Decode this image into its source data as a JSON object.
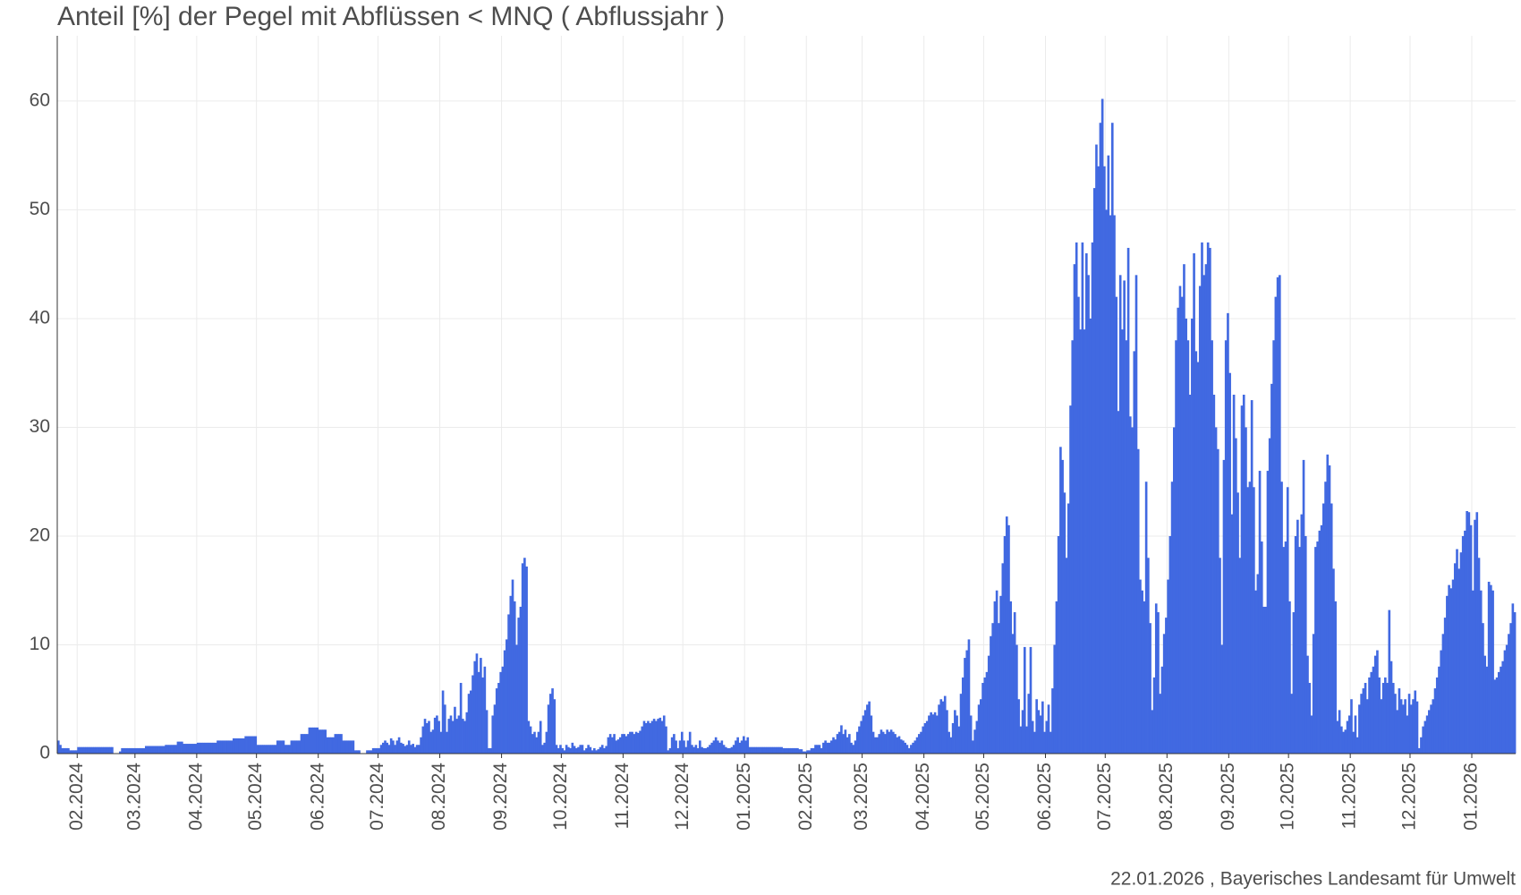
{
  "chart_data": {
    "type": "bar",
    "title": "Anteil [%] der Pegel mit Abflüssen < MNQ ( Abflussjahr )",
    "caption": "22.01.2026 , Bayerisches Landesamt für Umwelt",
    "color": "#4169e1",
    "grid": true,
    "ylim": [
      0,
      66
    ],
    "yticks": [
      0,
      10,
      20,
      30,
      40,
      50,
      60
    ],
    "xticks": [
      "02.2024",
      "03.2024",
      "04.2024",
      "05.2024",
      "06.2024",
      "07.2024",
      "08.2024",
      "09.2024",
      "10.2024",
      "11.2024",
      "12.2024",
      "01.2025",
      "02.2025",
      "03.2025",
      "04.2025",
      "05.2025",
      "06.2025",
      "07.2025",
      "08.2025",
      "09.2025",
      "10.2025",
      "11.2025",
      "12.2025",
      "01.2026"
    ],
    "values": [
      1.2,
      0.8,
      0.5,
      0.5,
      0.5,
      0.5,
      0.3,
      0.3,
      0.3,
      0.3,
      0.6,
      0.6,
      0.6,
      0.6,
      0.6,
      0.6,
      0.6,
      0.6,
      0.6,
      0.6,
      0.6,
      0.6,
      0.6,
      0.6,
      0.6,
      0.6,
      0.6,
      0.6,
      0,
      0,
      0,
      0.2,
      0.5,
      0.5,
      0.5,
      0.5,
      0.5,
      0.5,
      0.5,
      0.5,
      0.5,
      0.5,
      0.5,
      0.5,
      0.7,
      0.7,
      0.7,
      0.7,
      0.7,
      0.7,
      0.7,
      0.7,
      0.7,
      0.7,
      0.8,
      0.8,
      0.8,
      0.8,
      0.8,
      0.8,
      1.1,
      1.1,
      1.1,
      0.9,
      0.9,
      0.9,
      0.9,
      0.9,
      0.9,
      0.9,
      1.0,
      1.0,
      1.0,
      1.0,
      1.0,
      1.0,
      1.0,
      1.0,
      1.0,
      1.0,
      1.2,
      1.2,
      1.2,
      1.2,
      1.2,
      1.2,
      1.2,
      1.2,
      1.4,
      1.4,
      1.4,
      1.4,
      1.4,
      1.4,
      1.6,
      1.6,
      1.6,
      1.6,
      1.6,
      1.6,
      0.8,
      0.8,
      0.8,
      0.8,
      0.8,
      0.8,
      0.8,
      0.8,
      0.8,
      0.8,
      1.2,
      1.2,
      1.2,
      1.2,
      0.8,
      0.8,
      0.8,
      1.2,
      1.2,
      1.2,
      1.2,
      1.2,
      1.8,
      1.8,
      1.8,
      1.8,
      2.4,
      2.4,
      2.4,
      2.4,
      2.4,
      2.2,
      2.2,
      2.2,
      2.2,
      1.5,
      1.5,
      1.5,
      1.5,
      1.8,
      1.8,
      1.8,
      1.8,
      1.2,
      1.2,
      1.2,
      1.2,
      1.2,
      1.2,
      0.3,
      0.3,
      0.3,
      0,
      0,
      0,
      0.3,
      0.3,
      0.3,
      0.5,
      0.5,
      0.5,
      0.5,
      0.8,
      1.0,
      1.2,
      1.0,
      0.8,
      1.4,
      1.2,
      0.8,
      1.2,
      1.5,
      1.0,
      0.9,
      0.7,
      0.8,
      1.2,
      0.8,
      0.9,
      0.6,
      0.8,
      0.8,
      1.5,
      2.5,
      3.2,
      2.8,
      3.0,
      2.0,
      2.2,
      3.3,
      3.5,
      3.0,
      2.0,
      5.8,
      4.5,
      2.0,
      3.2,
      3.5,
      3.0,
      4.3,
      3.2,
      3.5,
      6.5,
      3.2,
      3.0,
      3.8,
      5.5,
      5.8,
      7.2,
      8.5,
      9.2,
      7.5,
      8.8,
      7.0,
      8.0,
      4.0,
      0.5,
      0.5,
      3.5,
      4.5,
      6.0,
      6.5,
      7.5,
      8.0,
      9.5,
      10.5,
      12.8,
      14.5,
      16.0,
      14.0,
      10.0,
      12.5,
      13.5,
      17.5,
      18.0,
      17.2,
      3.0,
      2.5,
      1.8,
      2.0,
      1.5,
      2.0,
      3.0,
      0.8,
      1.0,
      2.0,
      4.5,
      5.5,
      6.0,
      5.0,
      0.8,
      0.5,
      0.8,
      0.5,
      0.3,
      0.8,
      0.6,
      0.5,
      1.0,
      0.7,
      0.5,
      0.6,
      0.8,
      0.8,
      0.3,
      0.5,
      0.8,
      0.6,
      0.3,
      0.5,
      0.3,
      0.4,
      0.6,
      0.8,
      0.5,
      0.7,
      1.5,
      1.8,
      1.5,
      1.8,
      1.2,
      1.3,
      1.5,
      1.8,
      1.8,
      1.6,
      1.8,
      2.0,
      2.0,
      1.8,
      2.0,
      1.9,
      2.1,
      2.5,
      3.0,
      2.8,
      3.0,
      2.8,
      3.0,
      3.2,
      3.0,
      3.2,
      3.3,
      3.0,
      3.5,
      2.5,
      0.3,
      0.5,
      1.5,
      1.8,
      1.2,
      0.5,
      1.2,
      2.0,
      1.2,
      0.6,
      1.2,
      2.0,
      0.8,
      0.6,
      0.8,
      0.5,
      1.2,
      0.6,
      0.5,
      0.5,
      0.6,
      0.8,
      1.0,
      1.2,
      1.5,
      1.2,
      1.0,
      1.2,
      0.8,
      0.6,
      0.5,
      0.5,
      0.6,
      0.8,
      1.2,
      1.5,
      1.0,
      1.2,
      1.6,
      1.2,
      1.5,
      0.6,
      0.6,
      0.6,
      0.6,
      0.6,
      0.6,
      0.6,
      0.6,
      0.6,
      0.6,
      0.6,
      0.6,
      0.6,
      0.6,
      0.6,
      0.6,
      0.6,
      0.5,
      0.5,
      0.5,
      0.5,
      0.5,
      0.5,
      0.5,
      0.5,
      0.4,
      0.4,
      0.2,
      0.2,
      0.3,
      0.3,
      0.5,
      0.5,
      0.8,
      0.8,
      0.8,
      0.5,
      1.0,
      1.2,
      1.0,
      1.0,
      1.2,
      1.5,
      1.3,
      1.8,
      2.0,
      2.6,
      1.8,
      2.2,
      1.5,
      1.8,
      1.0,
      0.8,
      1.2,
      2.0,
      2.5,
      3.0,
      3.5,
      4.0,
      4.5,
      4.8,
      3.5,
      2.0,
      1.5,
      1.5,
      1.8,
      2.2,
      2.0,
      1.8,
      2.2,
      2.0,
      2.2,
      2.0,
      1.8,
      1.5,
      1.6,
      1.3,
      1.2,
      1.0,
      0.8,
      0.5,
      0.8,
      1.0,
      1.2,
      1.5,
      1.8,
      2.0,
      2.5,
      2.8,
      3.0,
      3.5,
      3.8,
      3.6,
      3.8,
      3.5,
      4.5,
      5.0,
      4.8,
      5.3,
      4.0,
      2.0,
      1.5,
      2.8,
      4.0,
      3.5,
      2.5,
      5.5,
      7.0,
      8.8,
      9.5,
      10.5,
      3.5,
      1.2,
      2.2,
      3.0,
      4.5,
      5.0,
      6.5,
      7.0,
      7.5,
      9.0,
      10.8,
      12.0,
      14.0,
      15.0,
      12.0,
      14.5,
      17.5,
      20.0,
      21.8,
      21.0,
      14.0,
      11.0,
      13.0,
      10.0,
      5.0,
      2.5,
      4.0,
      9.8,
      2.5,
      5.5,
      9.8,
      3.0,
      2.0,
      5.0,
      4.0,
      3.5,
      4.8,
      2.0,
      3.0,
      4.5,
      2.0,
      6.0,
      10.0,
      14.0,
      20.0,
      28.2,
      27.0,
      24.0,
      18.0,
      23.0,
      32.0,
      38.0,
      45.0,
      47.0,
      42.0,
      39.0,
      47.0,
      39.0,
      46.0,
      44.0,
      40.0,
      47.0,
      52.0,
      56.0,
      54.0,
      58.0,
      60.2,
      54.0,
      50.0,
      55.0,
      49.5,
      58.0,
      49.5,
      42.0,
      31.5,
      44.0,
      39.0,
      43.5,
      38.0,
      46.5,
      31.0,
      30.0,
      37.0,
      44.0,
      28.0,
      16.0,
      15.0,
      14.0,
      25.0,
      18.0,
      12.0,
      4.0,
      7.0,
      13.8,
      13.0,
      5.5,
      8.0,
      11.0,
      12.5,
      16.0,
      20.0,
      25.0,
      30.0,
      38.0,
      41.0,
      43.0,
      42.0,
      45.0,
      40.0,
      38.0,
      33.0,
      40.0,
      46.0,
      37.0,
      36.0,
      43.0,
      47.0,
      44.0,
      45.0,
      47.0,
      46.5,
      38.0,
      33.0,
      30.0,
      28.0,
      18.0,
      10.0,
      27.0,
      38.0,
      40.5,
      35.0,
      22.0,
      33.0,
      29.0,
      24.0,
      18.0,
      32.0,
      33.0,
      30.0,
      24.5,
      25.0,
      32.5,
      24.5,
      15.0,
      16.5,
      26.0,
      19.5,
      13.5,
      13.5,
      26.0,
      29.0,
      34.0,
      38.0,
      42.0,
      43.8,
      44.0,
      25.0,
      19.0,
      19.5,
      24.5,
      14.0,
      5.5,
      13.0,
      20.0,
      21.5,
      19.0,
      22.0,
      27.0,
      20.0,
      9.0,
      6.5,
      3.5,
      11.0,
      19.0,
      19.5,
      20.5,
      21.0,
      23.0,
      25.0,
      27.5,
      26.5,
      23.0,
      17.0,
      14.0,
      3.0,
      4.0,
      2.5,
      2.0,
      2.2,
      3.0,
      3.5,
      5.0,
      2.0,
      3.5,
      1.5,
      4.5,
      5.5,
      6.0,
      6.5,
      5.0,
      7.0,
      7.5,
      8.0,
      9.0,
      9.5,
      7.0,
      5.0,
      6.5,
      7.0,
      6.5,
      13.2,
      8.5,
      6.5,
      5.5,
      4.0,
      6.0,
      5.0,
      4.5,
      5.0,
      3.5,
      5.5,
      4.5,
      5.0,
      5.8,
      4.8,
      0.5,
      1.5,
      2.5,
      3.0,
      3.5,
      4.0,
      4.5,
      5.0,
      6.0,
      7.0,
      8.0,
      9.5,
      11.0,
      12.5,
      14.5,
      15.5,
      15.2,
      16.0,
      17.5,
      18.8,
      17.0,
      18.5,
      20.0,
      20.5,
      22.3,
      22.2,
      21.0,
      15.0,
      21.5,
      22.2,
      18.0,
      15.0,
      12.0,
      9.0,
      8.0,
      15.8,
      15.5,
      15.0,
      6.8,
      7.0,
      7.5,
      8.0,
      8.5,
      9.5,
      10.0,
      11.0,
      12.0,
      13.8,
      13.0
    ]
  }
}
